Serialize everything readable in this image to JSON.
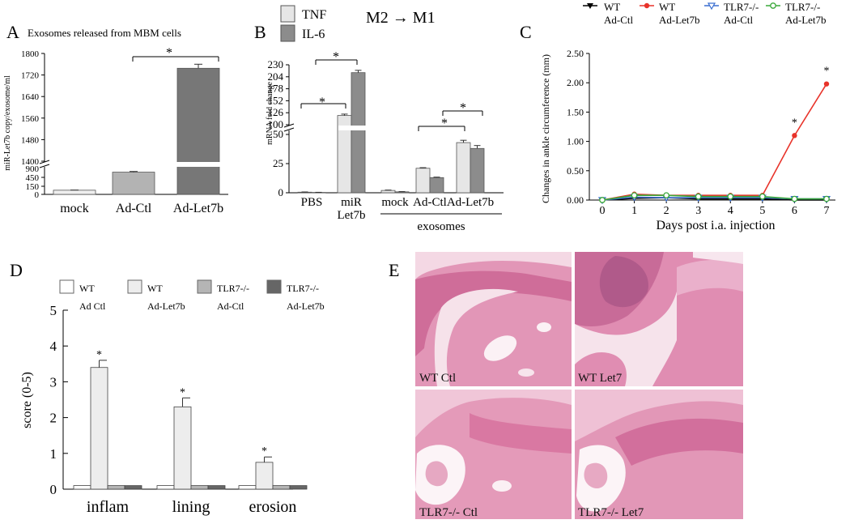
{
  "panel_letters": {
    "A": "A",
    "B": "B",
    "C": "C",
    "D": "D",
    "E": "E"
  },
  "star": "*",
  "chart_data": [
    {
      "panel": "A",
      "type": "bar",
      "title": "Exosomes released from MBM cells",
      "ylabel": "miR-Let7b copy/exosome/ml",
      "categories": [
        "mock",
        "Ad-Ctl",
        "Ad-Let7b"
      ],
      "values": [
        120,
        640,
        1745
      ],
      "errors": [
        5,
        20,
        15
      ],
      "colors": [
        "#eeeeee",
        "#b3b3b3",
        "#777777"
      ],
      "y_ticks_lower": [
        "0",
        "150",
        "450"
      ],
      "y_tick_break_label": "900",
      "y_ticks_upper": [
        "1400",
        "1480",
        "1560",
        "1640",
        "1720",
        "1800"
      ],
      "broken_axis": true,
      "significance": [
        {
          "between": [
            "Ad-Ctl",
            "Ad-Let7b"
          ],
          "mark": "*"
        }
      ]
    },
    {
      "panel": "B",
      "type": "bar",
      "title": "M2 → M1",
      "ylabel": "mRNA fold change",
      "groups": [
        "PBS",
        "miR\nLet7b",
        "mock",
        "Ad-Ctl",
        "Ad-Let7b"
      ],
      "group_label_lines": [
        [
          "PBS"
        ],
        [
          "miR",
          "Let7b"
        ],
        [
          "mock"
        ],
        [
          "Ad-Ctl"
        ],
        [
          "Ad-Let7b"
        ]
      ],
      "group_caption": "exosomes",
      "series": [
        {
          "name": "TNF",
          "color": "#e6e6e6",
          "values": [
            0.5,
            120,
            2,
            21,
            43
          ],
          "errors": [
            0.2,
            3,
            0.3,
            0.5,
            2
          ]
        },
        {
          "name": "IL-6",
          "color": "#8c8c8c",
          "values": [
            0.3,
            213,
            0.8,
            13,
            38
          ],
          "errors": [
            0.1,
            5,
            0.2,
            0.4,
            2.5
          ]
        }
      ],
      "y_ticks_lower": [
        "0",
        "25",
        "50"
      ],
      "y_ticks_upper": [
        "100",
        "126",
        "152",
        "178",
        "204",
        "230"
      ],
      "broken_axis": true,
      "significance": [
        "*",
        "*",
        "*",
        "*"
      ]
    },
    {
      "panel": "C",
      "type": "line",
      "ylabel": "Changes in ankle circumference (mm)",
      "xlabel": "Days post i.a. injection",
      "x": [
        0,
        1,
        2,
        3,
        4,
        5,
        6,
        7
      ],
      "xlim": [
        0,
        7
      ],
      "ylim": [
        0,
        2.5
      ],
      "y_ticks": [
        "0.00",
        "0.50",
        "1.00",
        "1.50",
        "2.00",
        "2.50"
      ],
      "series": [
        {
          "name": "WT\nAd-Ctl",
          "name_lines": [
            "WT",
            "Ad-Ctl"
          ],
          "color": "#000000",
          "marker": "triangle-down",
          "values": [
            0.0,
            0.03,
            0.04,
            0.02,
            0.02,
            0.02,
            0.0,
            0.0
          ]
        },
        {
          "name": "WT\nAd-Let7b",
          "name_lines": [
            "WT",
            "Ad-Let7b"
          ],
          "color": "#e8332a",
          "marker": "circle-filled",
          "values": [
            0.0,
            0.1,
            0.08,
            0.08,
            0.08,
            0.08,
            1.1,
            1.98
          ]
        },
        {
          "name": "TLR7-/-\nAd-Ctl",
          "name_lines": [
            "TLR7-/-",
            "Ad-Ctl"
          ],
          "color": "#3b6fd0",
          "marker": "triangle-down-open",
          "values": [
            0.0,
            0.05,
            0.04,
            0.04,
            0.04,
            0.04,
            0.02,
            0.02
          ]
        },
        {
          "name": "TLR7-/-\nAd-Let7b",
          "name_lines": [
            "TLR7-/-",
            "Ad-Let7b"
          ],
          "color": "#3aa83a",
          "marker": "circle-open",
          "values": [
            0.0,
            0.08,
            0.08,
            0.06,
            0.06,
            0.06,
            0.02,
            0.02
          ]
        }
      ],
      "significance_days": [
        6,
        7
      ]
    },
    {
      "panel": "D",
      "type": "bar",
      "ylabel": "score (0-5)",
      "categories": [
        "inflam",
        "lining",
        "erosion"
      ],
      "ylim": [
        0,
        5
      ],
      "y_ticks": [
        "0",
        "1",
        "2",
        "3",
        "4",
        "5"
      ],
      "series": [
        {
          "name": "WT\nAd Ctl",
          "name_lines": [
            "WT",
            "Ad Ctl"
          ],
          "color": "#ffffff",
          "values": [
            0.1,
            0.1,
            0.1
          ],
          "errors": [
            0,
            0,
            0
          ]
        },
        {
          "name": "WT\nAd-Let7b",
          "name_lines": [
            "WT",
            "Ad-Let7b"
          ],
          "color": "#ededed",
          "values": [
            3.4,
            2.3,
            0.75
          ],
          "errors": [
            0.2,
            0.25,
            0.15
          ]
        },
        {
          "name": "TLR7-/-\nAd-Ctl",
          "name_lines": [
            "TLR7-/-",
            "Ad-Ctl"
          ],
          "color": "#b5b5b5",
          "values": [
            0.1,
            0.1,
            0.1
          ],
          "errors": [
            0,
            0,
            0
          ]
        },
        {
          "name": "TLR7-/-\nAd-Let7b",
          "name_lines": [
            "TLR7-/-",
            "Ad-Let7b"
          ],
          "color": "#666666",
          "values": [
            0.1,
            0.1,
            0.1
          ],
          "errors": [
            0,
            0,
            0
          ]
        }
      ],
      "significance_series": "WT\nAd-Let7b"
    }
  ],
  "histology": {
    "tiles": [
      {
        "label": "WT Ctl"
      },
      {
        "label": "WT Let7"
      },
      {
        "label": "TLR7-/- Ctl"
      },
      {
        "label": "TLR7-/- Let7"
      }
    ]
  }
}
